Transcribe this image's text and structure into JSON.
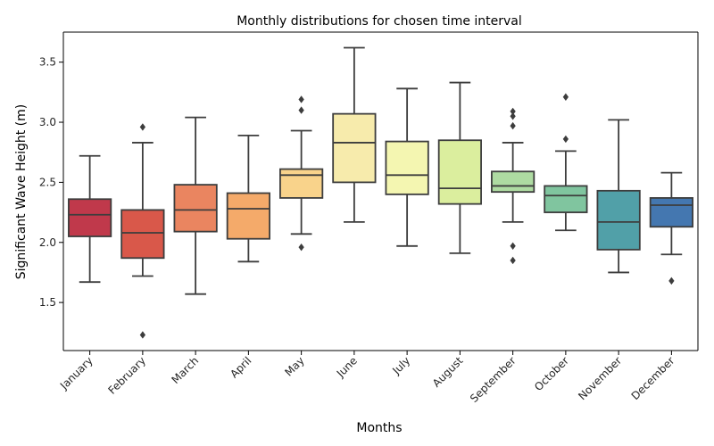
{
  "chart_data": {
    "type": "box",
    "title": "Monthly distributions for chosen time interval",
    "xlabel": "Months",
    "ylabel": "Significant Wave Height (m)",
    "ylim": [
      1.1,
      3.75
    ],
    "yticks": [
      1.5,
      2.0,
      2.5,
      3.0,
      3.5
    ],
    "ytick_labels": [
      "1.5",
      "2.0",
      "2.5",
      "3.0",
      "3.5"
    ],
    "grid": false,
    "categories": [
      "January",
      "February",
      "March",
      "April",
      "May",
      "June",
      "July",
      "August",
      "September",
      "October",
      "November",
      "December"
    ],
    "boxes": [
      {
        "whisker_low": 1.67,
        "q1": 2.05,
        "median": 2.23,
        "q3": 2.36,
        "whisker_high": 2.72,
        "outliers": [],
        "color": "#c0394b"
      },
      {
        "whisker_low": 1.72,
        "q1": 1.87,
        "median": 2.08,
        "q3": 2.27,
        "whisker_high": 2.83,
        "outliers": [
          2.96,
          1.23
        ],
        "color": "#d9584a"
      },
      {
        "whisker_low": 1.57,
        "q1": 2.09,
        "median": 2.27,
        "q3": 2.48,
        "whisker_high": 3.04,
        "outliers": [],
        "color": "#ea8560"
      },
      {
        "whisker_low": 1.84,
        "q1": 2.03,
        "median": 2.28,
        "q3": 2.41,
        "whisker_high": 2.89,
        "outliers": [],
        "color": "#f4aa6a"
      },
      {
        "whisker_low": 2.07,
        "q1": 2.37,
        "median": 2.56,
        "q3": 2.61,
        "whisker_high": 2.93,
        "outliers": [
          3.19,
          3.1,
          1.96
        ],
        "color": "#f9d38b"
      },
      {
        "whisker_low": 2.17,
        "q1": 2.5,
        "median": 2.83,
        "q3": 3.07,
        "whisker_high": 3.62,
        "outliers": [],
        "color": "#f7ebac"
      },
      {
        "whisker_low": 1.97,
        "q1": 2.4,
        "median": 2.56,
        "q3": 2.84,
        "whisker_high": 3.28,
        "outliers": [],
        "color": "#f4f6b1"
      },
      {
        "whisker_low": 1.91,
        "q1": 2.32,
        "median": 2.45,
        "q3": 2.85,
        "whisker_high": 3.33,
        "outliers": [],
        "color": "#dbee9e"
      },
      {
        "whisker_low": 2.17,
        "q1": 2.42,
        "median": 2.47,
        "q3": 2.59,
        "whisker_high": 2.83,
        "outliers": [
          3.09,
          3.05,
          2.97,
          1.97,
          1.85
        ],
        "color": "#aedba2"
      },
      {
        "whisker_low": 2.1,
        "q1": 2.25,
        "median": 2.39,
        "q3": 2.47,
        "whisker_high": 2.76,
        "outliers": [
          3.21,
          2.86
        ],
        "color": "#80c59f"
      },
      {
        "whisker_low": 1.75,
        "q1": 1.94,
        "median": 2.17,
        "q3": 2.43,
        "whisker_high": 3.02,
        "outliers": [],
        "color": "#51a0a8"
      },
      {
        "whisker_low": 1.9,
        "q1": 2.13,
        "median": 2.31,
        "q3": 2.37,
        "whisker_high": 2.58,
        "outliers": [
          1.68
        ],
        "color": "#4477b0"
      }
    ]
  }
}
